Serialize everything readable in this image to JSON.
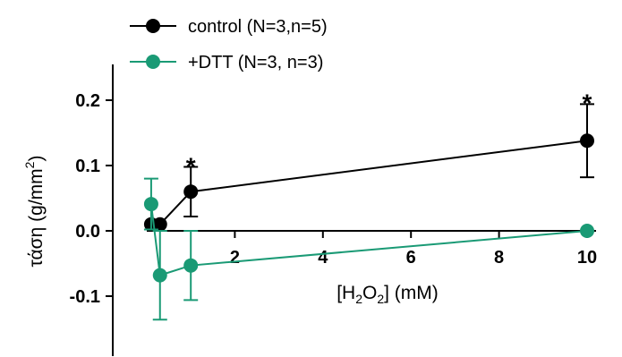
{
  "chart_data": {
    "type": "line",
    "xlabel": {
      "base": "[H",
      "sub1": "2",
      "mid": "O",
      "sub2": "2",
      "end": "] (mM)"
    },
    "ylabel": {
      "base": "τάση (g/mm",
      "sup": "2",
      "end": ")"
    },
    "xlim": [
      -0.8,
      10.6
    ],
    "ylim": [
      -0.19,
      0.255
    ],
    "x_ticks": [
      {
        "value": 2,
        "label": "2"
      },
      {
        "value": 4,
        "label": "4"
      },
      {
        "value": 6,
        "label": "6"
      },
      {
        "value": 8,
        "label": "8"
      },
      {
        "value": 10,
        "label": "10"
      }
    ],
    "y_ticks": [
      {
        "value": 0.2,
        "label": "0.2"
      },
      {
        "value": 0.1,
        "label": "0.1"
      },
      {
        "value": 0.0,
        "label": "0.0"
      },
      {
        "value": -0.1,
        "label": "-0.1"
      }
    ],
    "legend_position": "top-left",
    "series": [
      {
        "name": "control (N=3,n=5)",
        "color": "#000000",
        "points": [
          {
            "x": 0.1,
            "y": 0.01,
            "err": 0
          },
          {
            "x": 0.3,
            "y": 0.01,
            "err": 0
          },
          {
            "x": 1,
            "y": 0.06,
            "err": 0.038
          },
          {
            "x": 10,
            "y": 0.138,
            "err": 0.056
          }
        ]
      },
      {
        "name": "+DTT (N=3, n=3)",
        "color": "#1a9a75",
        "points": [
          {
            "x": 0.1,
            "y": 0.041,
            "err": 0.039
          },
          {
            "x": 0.3,
            "y": -0.068,
            "err": 0.068
          },
          {
            "x": 1,
            "y": -0.053,
            "err": 0.053
          },
          {
            "x": 10,
            "y": 0.0,
            "err": 0
          }
        ]
      }
    ],
    "annotations": [
      {
        "text": "*",
        "x": 1,
        "y": 0.105
      },
      {
        "text": "*",
        "x": 10,
        "y": 0.202
      }
    ]
  }
}
